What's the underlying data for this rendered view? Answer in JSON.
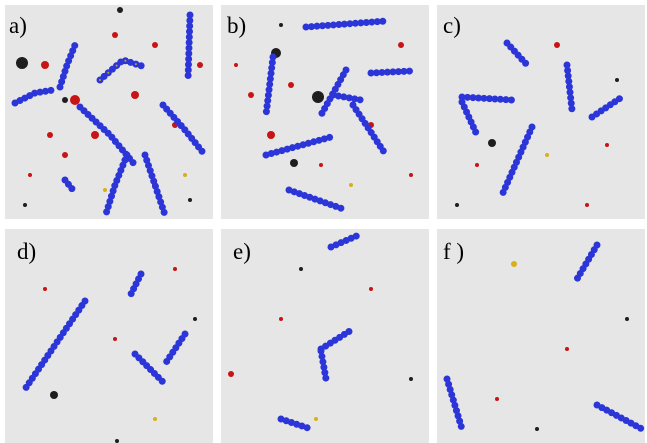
{
  "panels": [
    {
      "label": "a)"
    },
    {
      "label": "b)"
    },
    {
      "label": "c)"
    },
    {
      "label": "d)"
    },
    {
      "label": "e)"
    },
    {
      "label": "f )"
    }
  ]
}
